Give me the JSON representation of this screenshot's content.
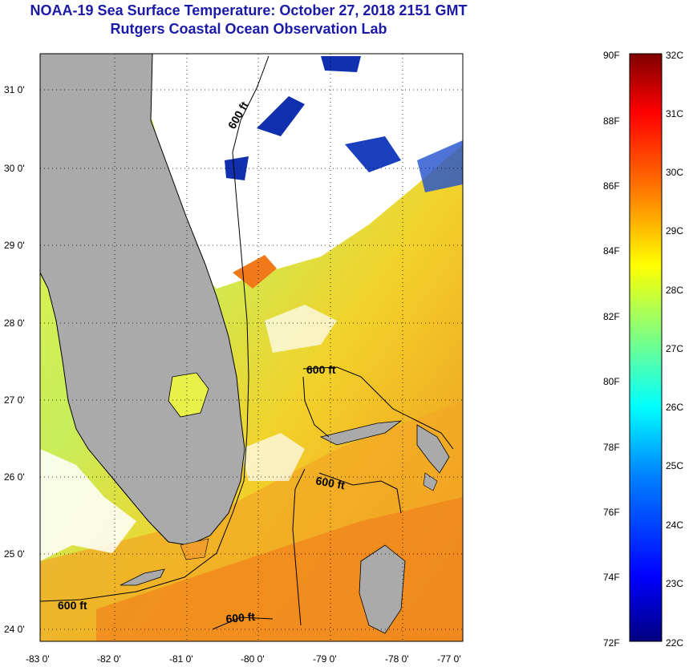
{
  "title": "NOAA-19 Sea Surface Temperature:  October 27, 2018 2151 GMT",
  "subtitle": "Rutgers Coastal Ocean Observation Lab",
  "colors": {
    "title": "#1a1aa6",
    "land": "#aaaaaa",
    "cloud": "#ffffff",
    "contour": "#000000"
  },
  "map": {
    "lon_range": [
      -83,
      -77
    ],
    "lat_range": [
      23.8,
      31.4
    ],
    "lon_ticks": [
      "-83 0'",
      "-82 0'",
      "-81 0'",
      "-80 0'",
      "-79 0'",
      "-78 0'",
      "-77 0'"
    ],
    "lat_ticks": [
      "31 0'",
      "30 0'",
      "29 0'",
      "28 0'",
      "27 0'",
      "26 0'",
      "25 0'",
      "24 0'"
    ],
    "contour_labels": [
      "600 ft",
      "600 ft",
      "600 ft",
      "600 ft",
      "600 ft"
    ]
  },
  "colorbar": {
    "fahrenheit_labels": [
      "90F",
      "88F",
      "86F",
      "84F",
      "82F",
      "80F",
      "78F",
      "76F",
      "74F",
      "72F"
    ],
    "celsius_labels": [
      "32C",
      "31C",
      "30C",
      "29C",
      "28C",
      "27C",
      "26C",
      "25C",
      "24C",
      "23C",
      "22C"
    ],
    "stops": [
      "#00007f",
      "#0000ff",
      "#0080ff",
      "#00ffff",
      "#80ff80",
      "#ffff00",
      "#ff8000",
      "#ff0000",
      "#7f0000"
    ]
  }
}
